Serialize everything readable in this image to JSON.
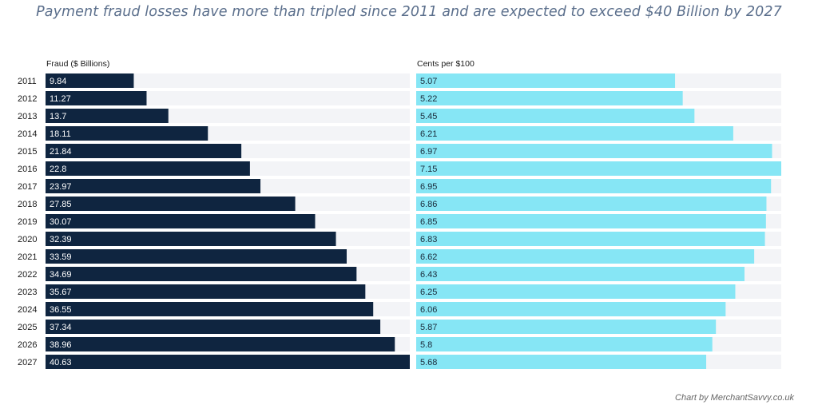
{
  "header": {
    "title": "Payment fraud losses have more than tripled since 2011 and are expected to exceed $40 Billion by 2027"
  },
  "footer": {
    "credit": "Chart by MerchantSavvy.co.uk"
  },
  "colors": {
    "fraud_bar": "#0f2540",
    "cents_bar": "#86e6f5",
    "track": "#f3f4f7",
    "title": "#5b6f8c",
    "fraud_label_text": "#ffffff",
    "cents_label_text": "#1a2a3a"
  },
  "chart_data": {
    "type": "bar",
    "orientation": "horizontal",
    "title": "Payment fraud losses have more than tripled since 2011 and are expected to exceed $40 Billion by 2027",
    "categories": [
      "2011",
      "2012",
      "2013",
      "2014",
      "2015",
      "2016",
      "2017",
      "2018",
      "2019",
      "2020",
      "2021",
      "2022",
      "2023",
      "2024",
      "2025",
      "2026",
      "2027"
    ],
    "series": [
      {
        "name": "Fraud ($ Billions)",
        "values": [
          9.84,
          11.27,
          13.7,
          18.11,
          21.84,
          22.8,
          23.97,
          27.85,
          30.07,
          32.39,
          33.59,
          34.69,
          35.67,
          36.55,
          37.34,
          38.96,
          40.63
        ],
        "labels": [
          "9.84",
          "11.27",
          "13.7",
          "18.11",
          "21.84",
          "22.8",
          "23.97",
          "27.85",
          "30.07",
          "32.39",
          "33.59",
          "34.69",
          "35.67",
          "36.55",
          "37.34",
          "38.96",
          "40.63"
        ],
        "max": 40.63
      },
      {
        "name": "Cents per $100",
        "values": [
          5.07,
          5.22,
          5.45,
          6.21,
          6.97,
          7.15,
          6.95,
          6.86,
          6.85,
          6.83,
          6.62,
          6.43,
          6.25,
          6.06,
          5.87,
          5.8,
          5.68
        ],
        "labels": [
          "5.07",
          "5.22",
          "5.45",
          "6.21",
          "6.97",
          "7.15",
          "6.95",
          "6.86",
          "6.85",
          "6.83",
          "6.62",
          "6.43",
          "6.25",
          "6.06",
          "5.87",
          "5.8",
          "5.68"
        ],
        "max": 7.15
      }
    ],
    "grid": false,
    "legend": "none"
  }
}
